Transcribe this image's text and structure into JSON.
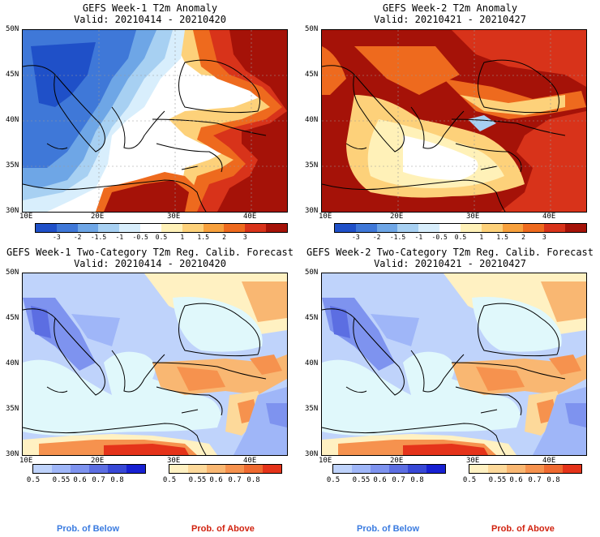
{
  "panels": [
    {
      "title": "GEFS Week-1 T2m Anomaly",
      "subtitle": "Valid: 20210414 - 20210420"
    },
    {
      "title": "GEFS Week-2 T2m Anomaly",
      "subtitle": "Valid: 20210421 - 20210427"
    },
    {
      "title": "GEFS Week-1 Two-Category T2m Reg. Calib. Forecast",
      "subtitle": "Valid: 20210414 - 20210420"
    },
    {
      "title": "GEFS Week-2 Two-Category T2m Reg. Calib. Forecast",
      "subtitle": "Valid: 20210421 - 20210427"
    }
  ],
  "axes": {
    "lat_labels": [
      "50N",
      "45N",
      "40N",
      "35N",
      "30N"
    ],
    "lon_labels": [
      "10E",
      "20E",
      "30E",
      "40E"
    ]
  },
  "anomaly_colorbar": {
    "labels": [
      "-3",
      "-2",
      "-1.5",
      "-1",
      "-0.5",
      "0.5",
      "1",
      "1.5",
      "2",
      "3"
    ],
    "colors": [
      "#1f50c8",
      "#3f78d8",
      "#6ea6e6",
      "#a7d0f2",
      "#d8eefc",
      "#ffffff",
      "#fff1b8",
      "#fdd17a",
      "#f7a03c",
      "#ee6a1e",
      "#d8331a",
      "#a51208"
    ]
  },
  "prob_colorbars": {
    "below": {
      "labels": [
        "0.5",
        "0.55",
        "0.6",
        "0.7",
        "0.8"
      ],
      "colors": [
        "#bfd3fb",
        "#9fb6f8",
        "#7e93ef",
        "#5c6ee2",
        "#3848d6",
        "#1720d2"
      ]
    },
    "above": {
      "labels": [
        "0.5",
        "0.55",
        "0.6",
        "0.7",
        "0.8"
      ],
      "colors": [
        "#fff1c2",
        "#fdd99a",
        "#f9b772",
        "#f6924e",
        "#ef6a30",
        "#e5331a"
      ]
    }
  },
  "legend": {
    "below": "Prob. of Below",
    "above": "Prob. of Above",
    "below_color": "#3a7be0",
    "above_color": "#d1220f"
  },
  "sea_color": "#e0f8fb"
}
